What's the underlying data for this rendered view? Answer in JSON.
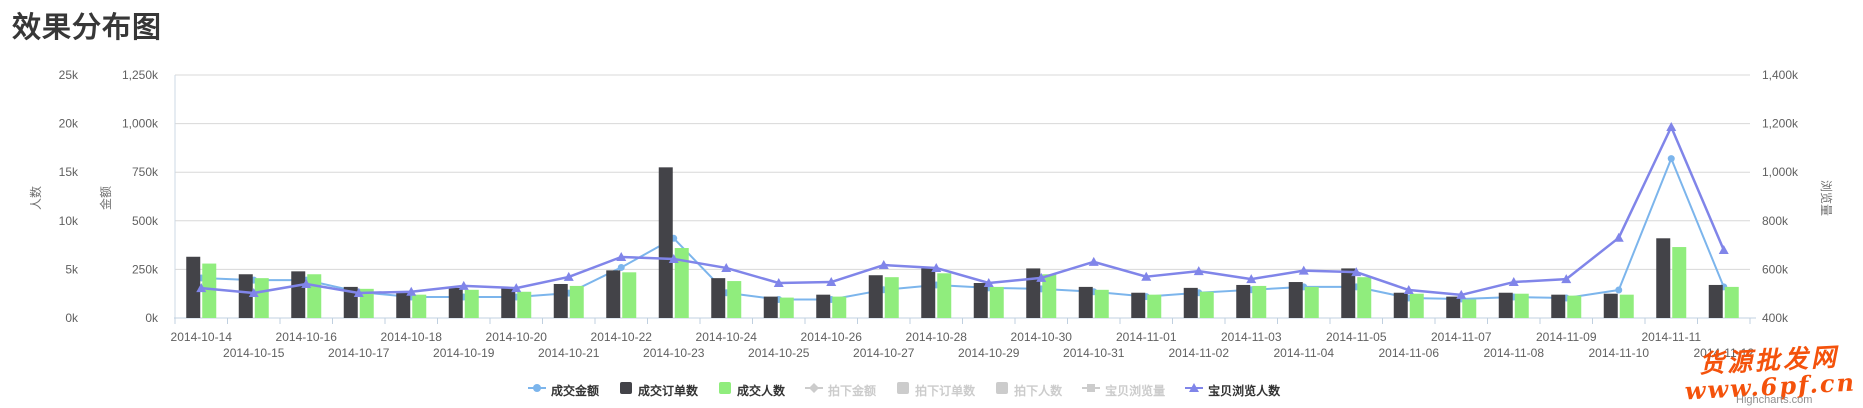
{
  "page": {
    "title": "效果分布图"
  },
  "watermark": {
    "line1": "货源批发网",
    "line2": "www.6pf.cn",
    "color": "#f4520b"
  },
  "credits": "Highcharts.com",
  "legend": {
    "items": [
      {
        "label": "成交金额",
        "marker": "line-circle",
        "color": "#7cb5ec",
        "enabled": true
      },
      {
        "label": "成交订单数",
        "marker": "square",
        "color": "#434348",
        "enabled": true
      },
      {
        "label": "成交人数",
        "marker": "square",
        "color": "#90ed7d",
        "enabled": true
      },
      {
        "label": "拍下金额",
        "marker": "line-diamond",
        "color": "#cccccc",
        "enabled": false
      },
      {
        "label": "拍下订单数",
        "marker": "square",
        "color": "#cccccc",
        "enabled": false
      },
      {
        "label": "拍下人数",
        "marker": "square",
        "color": "#cccccc",
        "enabled": false
      },
      {
        "label": "宝贝浏览量",
        "marker": "line-square",
        "color": "#cccccc",
        "enabled": false
      },
      {
        "label": "宝贝浏览人数",
        "marker": "line-triangle",
        "color": "#8085e9",
        "enabled": true
      }
    ]
  },
  "chart_data": {
    "type": "bar",
    "subtype": "column+line combo, dual left axes + right axis",
    "grid": true,
    "legend_position": "bottom-center",
    "categories": [
      "2014-10-14",
      "2014-10-15",
      "2014-10-16",
      "2014-10-17",
      "2014-10-18",
      "2014-10-19",
      "2014-10-20",
      "2014-10-21",
      "2014-10-22",
      "2014-10-23",
      "2014-10-24",
      "2014-10-25",
      "2014-10-26",
      "2014-10-27",
      "2014-10-28",
      "2014-10-29",
      "2014-10-30",
      "2014-10-31",
      "2014-11-01",
      "2014-11-02",
      "2014-11-03",
      "2014-11-04",
      "2014-11-05",
      "2014-11-06",
      "2014-11-07",
      "2014-11-08",
      "2014-11-09",
      "2014-11-10",
      "2014-11-11",
      "2014-11-12"
    ],
    "axes": {
      "left_people": {
        "title": "人数",
        "min": 0,
        "max": 25,
        "unit": "k",
        "tick_labels": [
          "25k",
          "20k",
          "15k",
          "10k",
          "5k",
          "0k"
        ]
      },
      "left_amount": {
        "title": "金额",
        "min": 0,
        "max": 1250,
        "unit": "k",
        "tick_labels": [
          "1,250k",
          "1,000k",
          "750k",
          "500k",
          "250k",
          "0k"
        ]
      },
      "right_views": {
        "title": "浏览量",
        "min": 400,
        "max": 1400,
        "unit": "k",
        "tick_labels": [
          "1,400k",
          "1,200k",
          "1,000k",
          "800k",
          "600k",
          "400k"
        ]
      }
    },
    "series": [
      {
        "name": "成交金额",
        "type": "line",
        "marker": "circle",
        "color": "#7cb5ec",
        "axis": "left_amount",
        "unit": "k",
        "values": [
          206,
          195,
          195,
          134,
          108,
          108,
          108,
          128,
          260,
          410,
          130,
          95,
          95,
          145,
          170,
          155,
          150,
          135,
          110,
          130,
          145,
          160,
          160,
          103,
          98,
          108,
          103,
          144,
          820,
          160
        ]
      },
      {
        "name": "成交订单数",
        "type": "bar",
        "color": "#434348",
        "axis": "left_people",
        "unit": "k",
        "values": [
          6.3,
          4.5,
          4.8,
          3.2,
          2.6,
          3.1,
          3.1,
          3.5,
          4.9,
          15.5,
          4.1,
          2.2,
          2.4,
          4.4,
          5.1,
          3.6,
          5.1,
          3.2,
          2.6,
          3.1,
          3.4,
          3.7,
          5.1,
          2.6,
          2.2,
          2.6,
          2.4,
          2.5,
          8.2,
          3.4
        ]
      },
      {
        "name": "成交人数",
        "type": "bar",
        "color": "#90ed7d",
        "axis": "left_people",
        "unit": "k",
        "values": [
          5.6,
          4.1,
          4.5,
          3.0,
          2.4,
          2.9,
          2.7,
          3.3,
          4.7,
          7.2,
          3.8,
          2.1,
          2.2,
          4.2,
          4.6,
          3.2,
          4.5,
          2.9,
          2.4,
          2.7,
          3.3,
          3.2,
          4.2,
          2.5,
          1.9,
          2.5,
          2.3,
          2.4,
          7.3,
          3.2
        ]
      },
      {
        "name": "宝贝浏览人数",
        "type": "line",
        "marker": "triangle",
        "color": "#8085e9",
        "axis": "right_views",
        "unit": "k",
        "values": [
          523,
          503,
          540,
          503,
          508,
          532,
          523,
          569,
          651,
          643,
          606,
          544,
          548,
          618,
          606,
          544,
          565,
          631,
          570,
          593,
          560,
          595,
          589,
          515,
          495,
          548,
          560,
          730,
          1186,
          680
        ]
      }
    ],
    "disabled_series": [
      "拍下金额",
      "拍下订单数",
      "拍下人数",
      "宝贝浏览量"
    ]
  }
}
